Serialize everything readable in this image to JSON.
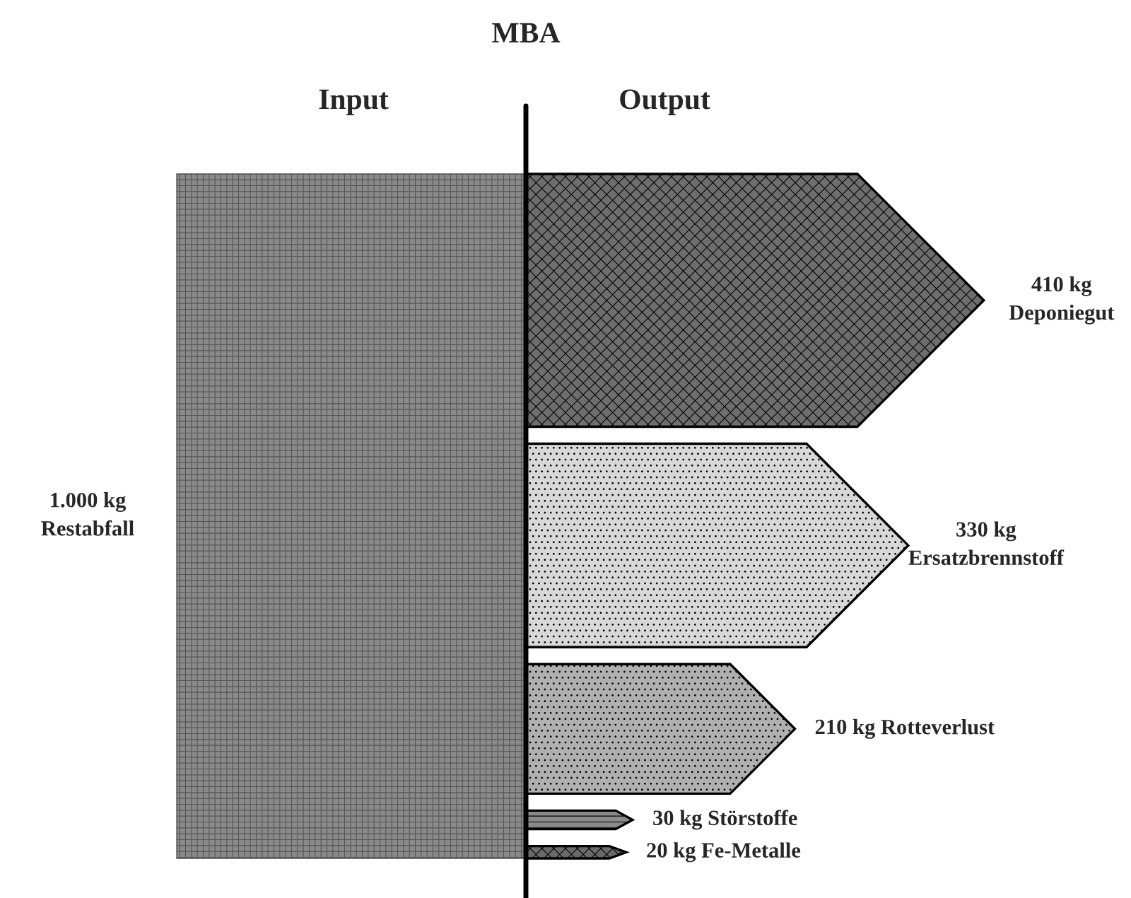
{
  "chart_data": {
    "type": "other",
    "title": "MBA",
    "annotations": [
      "Input",
      "Output"
    ],
    "categories": [
      "Restabfall",
      "Deponiegut",
      "Ersatzbrennstoff",
      "Rotteverlust",
      "Störstoffe",
      "Fe-Metalle"
    ],
    "values": [
      1000,
      410,
      330,
      210,
      30,
      20
    ],
    "value_labels": [
      "1.000 kg",
      "410 kg",
      "330 kg",
      "210 kg",
      "30 kg",
      "20 kg"
    ],
    "colors": [
      "#8a8a8a",
      "#6e6e6e",
      "#d8d8d8",
      "#b0b0b0",
      "#8a8a8a",
      "#6a6a6a"
    ]
  }
}
